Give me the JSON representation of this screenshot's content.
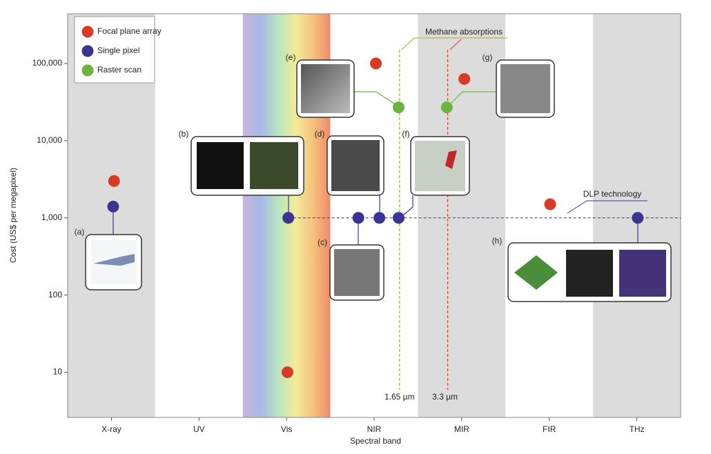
{
  "chart_data": {
    "type": "scatter",
    "xlabel": "Spectral band",
    "ylabel": "Cost (US$ per megapixel)",
    "categories": [
      "X-ray",
      "UV",
      "Vis",
      "NIR",
      "MIR",
      "FIR",
      "THz"
    ],
    "xlim": [
      -0.5,
      6.5
    ],
    "ylim": [
      2.6,
      440000
    ],
    "log_y": true,
    "yticks": [
      {
        "value": 100000,
        "label": "100,000"
      },
      {
        "value": 10000,
        "label": "10,000"
      },
      {
        "value": 1000,
        "label": "1,000"
      },
      100,
      10
    ],
    "series": [
      {
        "name": "Focal plane array",
        "color": "#d93a26",
        "x": [
          0.03,
          2.01,
          3.02,
          4.03,
          5.01
        ],
        "values": [
          3000,
          10,
          100000,
          63000,
          1500
        ]
      },
      {
        "name": "Single pixel",
        "color": "#3a3592",
        "x": [
          0.02,
          2.02,
          2.82,
          3.06,
          3.28,
          6.01
        ],
        "values": [
          1400,
          1000,
          1000,
          1000,
          1000,
          1000
        ]
      },
      {
        "name": "Raster scan",
        "color": "#6cb33f",
        "x": [
          3.28,
          3.83
        ],
        "values": [
          27000,
          27000
        ]
      }
    ],
    "vlines": [
      {
        "label": "1.65 µm",
        "x": 3.29,
        "color": "#b8a21a"
      },
      {
        "label": "3.3 µm",
        "x": 3.84,
        "color": "#d93a26"
      }
    ],
    "annotations": [
      "Methane absorptions",
      "DLP technology"
    ],
    "panel_labels": [
      "(a)",
      "(b)",
      "(c)",
      "(d)",
      "(e)",
      "(f)",
      "(g)",
      "(h)"
    ]
  }
}
